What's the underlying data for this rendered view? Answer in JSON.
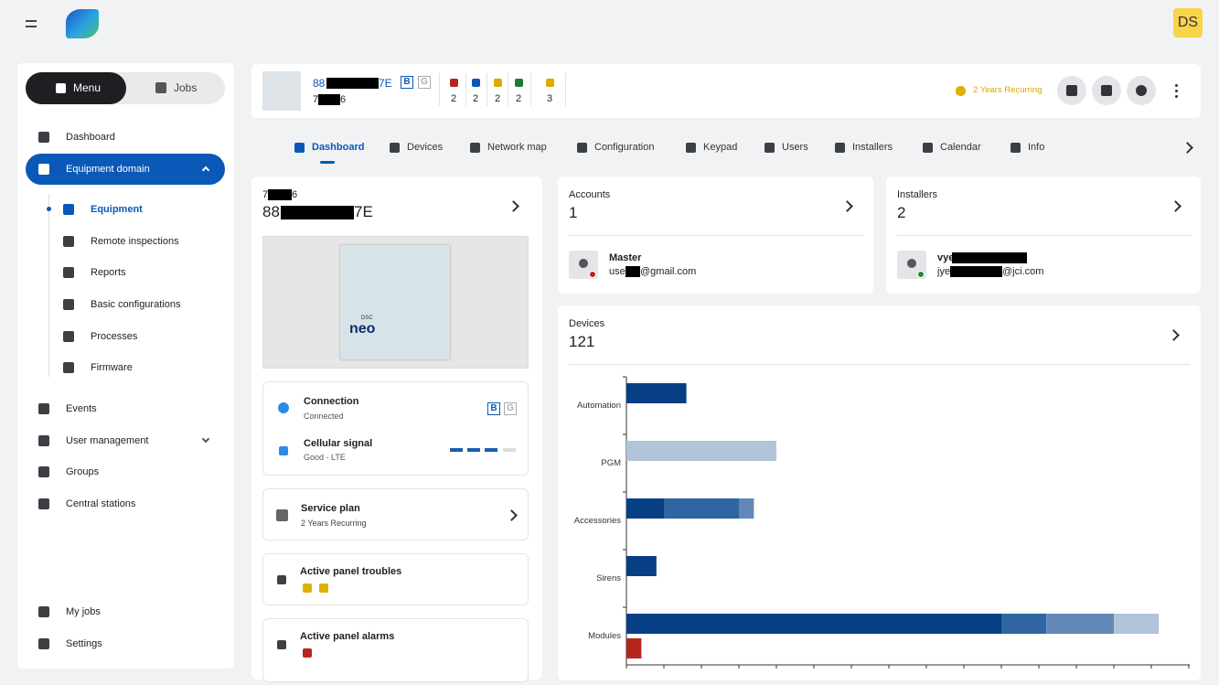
{
  "header": {
    "avatar": "DS"
  },
  "sidebar": {
    "tabs": [
      "Menu",
      "Jobs"
    ],
    "items": [
      "Dashboard",
      "Equipment domain"
    ],
    "sub_items": [
      "Equipment",
      "Remote inspections",
      "Reports",
      "Basic configurations",
      "Processes",
      "Firmware"
    ],
    "more_items": [
      "Events",
      "User management",
      "Groups",
      "Central stations"
    ],
    "bottom_items": [
      "My jobs",
      "Settings"
    ]
  },
  "panel_bar": {
    "id_prefix": "88",
    "id_suffix": "7E",
    "code_prefix": "7",
    "code_suffix": "6",
    "badges": [
      "B",
      "G"
    ],
    "status_counts": [
      2,
      2,
      2,
      2,
      3
    ],
    "plan": "2 Years Recurring"
  },
  "tabs": [
    "Dashboard",
    "Devices",
    "Network map",
    "Configuration",
    "Keypad",
    "Users",
    "Installers",
    "Calendar",
    "Info"
  ],
  "panel_card": {
    "code_prefix": "7",
    "code_suffix": "6",
    "id_prefix": "88",
    "id_suffix": "7E",
    "image_brand": "DSC",
    "image_logo": "neo"
  },
  "connection": {
    "title": "Connection",
    "status": "Connected",
    "badges": [
      "B",
      "G"
    ],
    "signal_title": "Cellular signal",
    "signal_status": "Good - LTE"
  },
  "service_plan": {
    "title": "Service plan",
    "plan": "2 Years Recurring"
  },
  "troubles": {
    "title": "Active panel troubles"
  },
  "alarms": {
    "title": "Active panel alarms"
  },
  "accounts": {
    "title": "Accounts",
    "count": 1,
    "name": "Master",
    "email_prefix": "use",
    "email_suffix": "@gmail.com"
  },
  "installers": {
    "title": "Installers",
    "count": 2,
    "name_prefix": "vye",
    "email_prefix": "jye",
    "email_suffix": "@jci.com"
  },
  "devices": {
    "title": "Devices",
    "count": 121
  },
  "chart_data": {
    "type": "bar",
    "orientation": "horizontal",
    "categories": [
      "Automation",
      "PGM",
      "Accessories",
      "Sirens",
      "Modules"
    ],
    "series": [
      {
        "color": "#073f84",
        "values": [
          8,
          null,
          5,
          4,
          50
        ]
      },
      {
        "color": "#2f66a1",
        "values": [
          null,
          null,
          10,
          null,
          6
        ]
      },
      {
        "color": "#6388b7",
        "values": [
          null,
          null,
          2,
          null,
          9
        ]
      },
      {
        "color": "#b1c4da",
        "values": [
          null,
          20,
          null,
          null,
          6
        ]
      },
      {
        "color": "#b3261e",
        "values": [
          null,
          null,
          null,
          null,
          2
        ]
      }
    ],
    "xlim": [
      0,
      75
    ],
    "xticks": [
      0,
      5,
      10,
      15,
      20,
      25,
      30,
      35,
      40,
      45,
      50,
      55,
      60,
      65,
      70,
      75
    ]
  }
}
